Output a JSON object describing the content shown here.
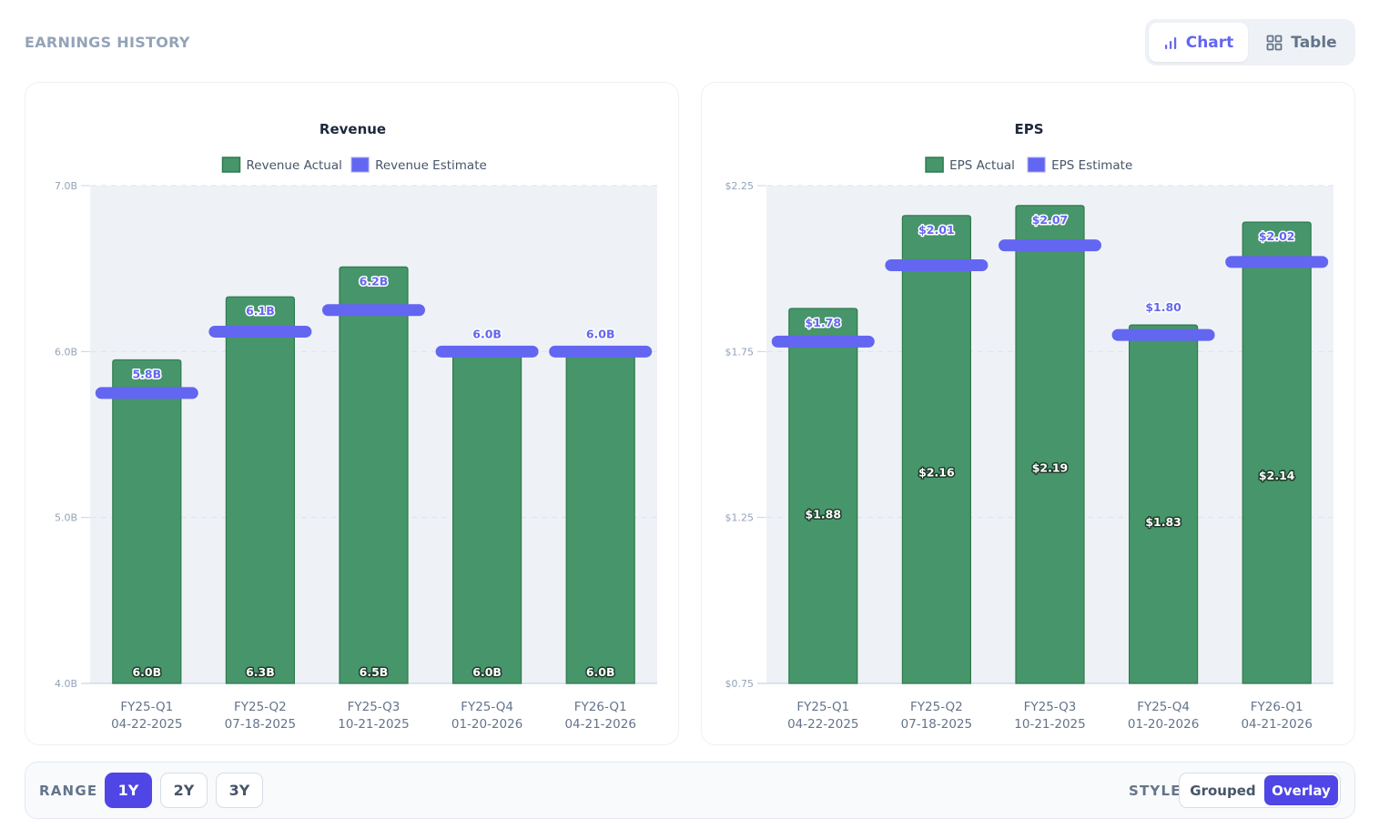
{
  "header": {
    "title": "EARNINGS HISTORY",
    "view_toggle": [
      {
        "label": "Chart",
        "icon": "bar-chart-icon",
        "active": true
      },
      {
        "label": "Table",
        "icon": "grid-icon",
        "active": false
      }
    ]
  },
  "colors": {
    "actual": "#47956a",
    "actual_border": "#2f7a4c",
    "estimate": "#6366f1",
    "plot_bg": "#eef2f7",
    "accent": "#4f46e5"
  },
  "controls": {
    "range_label": "RANGE",
    "range_options": [
      "1Y",
      "2Y",
      "3Y"
    ],
    "range_selected": "1Y",
    "style_label": "STYLE",
    "style_options": [
      "Grouped",
      "Overlay"
    ],
    "style_selected": "Overlay"
  },
  "chart_data": [
    {
      "type": "bar",
      "title": "Revenue",
      "legend": [
        "Revenue Actual",
        "Revenue Estimate"
      ],
      "legend_position": "top-center",
      "categories": [
        "FY25-Q1",
        "FY25-Q2",
        "FY25-Q3",
        "FY25-Q4",
        "FY26-Q1"
      ],
      "dates": [
        "04-22-2025",
        "07-18-2025",
        "10-21-2025",
        "01-20-2026",
        "04-21-2026"
      ],
      "series": [
        {
          "name": "Revenue Actual",
          "values": [
            5.95,
            6.33,
            6.51,
            6.0,
            6.0
          ],
          "labels": [
            "6.0B",
            "6.3B",
            "6.5B",
            "6.0B",
            "6.0B"
          ]
        },
        {
          "name": "Revenue Estimate",
          "values": [
            5.75,
            6.12,
            6.25,
            6.0,
            6.0
          ],
          "labels": [
            "5.8B",
            "6.1B",
            "6.2B",
            "6.0B",
            "6.0B"
          ]
        }
      ],
      "ylim": [
        4.0,
        7.0
      ],
      "yticks": [
        4.0,
        5.0,
        6.0,
        7.0
      ],
      "ytick_labels": [
        "4.0B",
        "5.0B",
        "6.0B",
        "7.0B"
      ],
      "grid": true,
      "xlabel": "",
      "ylabel": ""
    },
    {
      "type": "bar",
      "title": "EPS",
      "legend": [
        "EPS Actual",
        "EPS Estimate"
      ],
      "legend_position": "top-center",
      "categories": [
        "FY25-Q1",
        "FY25-Q2",
        "FY25-Q3",
        "FY25-Q4",
        "FY26-Q1"
      ],
      "dates": [
        "04-22-2025",
        "07-18-2025",
        "10-21-2025",
        "01-20-2026",
        "04-21-2026"
      ],
      "series": [
        {
          "name": "EPS Actual",
          "values": [
            1.88,
            2.16,
            2.19,
            1.83,
            2.14
          ],
          "labels": [
            "$1.88",
            "$2.16",
            "$2.19",
            "$1.83",
            "$2.14"
          ]
        },
        {
          "name": "EPS Estimate",
          "values": [
            1.78,
            2.01,
            2.07,
            1.8,
            2.02
          ],
          "labels": [
            "$1.78",
            "$2.01",
            "$2.07",
            "$1.80",
            "$2.02"
          ]
        }
      ],
      "ylim": [
        0.75,
        2.25
      ],
      "yticks": [
        0.75,
        1.25,
        1.75,
        2.25
      ],
      "ytick_labels": [
        "$0.75",
        "$1.25",
        "$1.75",
        "$2.25"
      ],
      "grid": true,
      "xlabel": "",
      "ylabel": ""
    }
  ]
}
